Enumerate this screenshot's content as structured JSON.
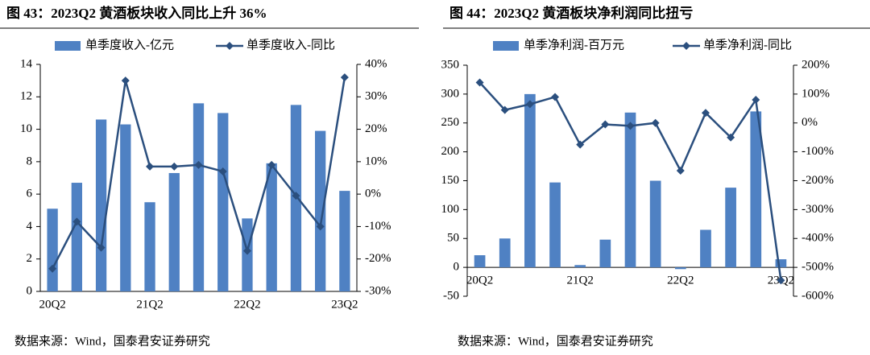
{
  "chart_data": [
    {
      "type": "combo",
      "title": "图 43：2023Q2 黄酒板块收入同比上升 36%",
      "source": "数据来源：Wind，国泰君安证券研究",
      "categories": [
        "20Q2",
        null,
        null,
        null,
        "21Q2",
        null,
        null,
        null,
        "22Q2",
        null,
        null,
        null,
        "23Q2"
      ],
      "series": [
        {
          "name": "单季度收入-亿元",
          "type": "bar",
          "color": "#4f81c3",
          "values": [
            5.1,
            6.7,
            10.6,
            10.3,
            5.5,
            7.3,
            11.6,
            11.0,
            4.5,
            7.9,
            11.5,
            9.9,
            6.2
          ]
        },
        {
          "name": "单季度收入-同比",
          "type": "line",
          "axis": "y2",
          "color": "#2b4f7e",
          "values": [
            -23,
            -8.5,
            -16.5,
            35,
            8.5,
            8.5,
            9,
            7,
            -17.5,
            9,
            -0.5,
            -10,
            36
          ]
        }
      ],
      "ylim": [
        0,
        14
      ],
      "yticks": [
        0,
        2,
        4,
        6,
        8,
        10,
        12,
        14
      ],
      "y2lim": [
        -30,
        40
      ],
      "y2ticks": [
        {
          "value": -30,
          "label": "-30%"
        },
        {
          "value": -20,
          "label": "-20%"
        },
        {
          "value": -10,
          "label": "-10%"
        },
        {
          "value": 0,
          "label": "0%"
        },
        {
          "value": 10,
          "label": "10%"
        },
        {
          "value": 20,
          "label": "20%"
        },
        {
          "value": 30,
          "label": "30%"
        },
        {
          "value": 40,
          "label": "40%"
        }
      ],
      "grid": false
    },
    {
      "type": "combo",
      "title": "图 44：2023Q2 黄酒板块净利润同比扭亏",
      "source": "数据来源：Wind，国泰君安证券研究",
      "categories": [
        "20Q2",
        null,
        null,
        null,
        "21Q2",
        null,
        null,
        null,
        "22Q2",
        null,
        null,
        null,
        "23Q2"
      ],
      "series": [
        {
          "name": "单季净利润-百万元",
          "type": "bar",
          "color": "#4f81c3",
          "values": [
            21,
            50,
            300,
            147,
            4,
            48,
            268,
            150,
            -3,
            65,
            138,
            270,
            14
          ]
        },
        {
          "name": "单季净利润-同比",
          "type": "line",
          "axis": "y2",
          "color": "#2b4f7e",
          "values": [
            140,
            45,
            65,
            90,
            -75,
            -5,
            -10,
            0,
            -165,
            35,
            -50,
            80,
            -545
          ]
        }
      ],
      "ylim": [
        -50,
        350
      ],
      "yticks": [
        -50,
        0,
        50,
        100,
        150,
        200,
        250,
        300,
        350
      ],
      "y2lim": [
        -600,
        200
      ],
      "y2ticks": [
        {
          "value": -600,
          "label": "-600%"
        },
        {
          "value": -500,
          "label": "-500%"
        },
        {
          "value": -400,
          "label": "-400%"
        },
        {
          "value": -300,
          "label": "-300%"
        },
        {
          "value": -200,
          "label": "-200%"
        },
        {
          "value": -100,
          "label": "-100%"
        },
        {
          "value": 0,
          "label": "0%"
        },
        {
          "value": 100,
          "label": "100%"
        },
        {
          "value": 200,
          "label": "200%"
        }
      ],
      "grid": false
    }
  ]
}
